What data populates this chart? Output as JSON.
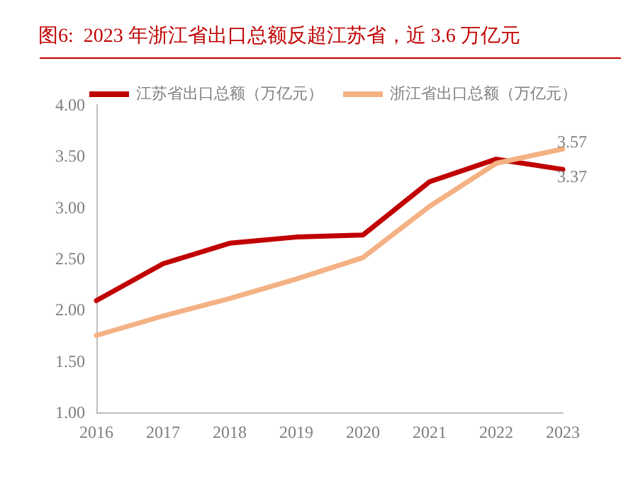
{
  "chart_data": {
    "type": "line",
    "title": "图6:  2023 年浙江省出口总额反超江苏省，近 3.6 万亿元",
    "categories": [
      "2016",
      "2017",
      "2018",
      "2019",
      "2020",
      "2021",
      "2022",
      "2023"
    ],
    "series": [
      {
        "name": "江苏省出口总额（万亿元）",
        "color": "#c00000",
        "values": [
          2.09,
          2.45,
          2.65,
          2.71,
          2.73,
          3.25,
          3.47,
          3.37
        ],
        "value_labels": [
          null,
          null,
          null,
          null,
          null,
          null,
          null,
          "3.37"
        ]
      },
      {
        "name": "浙江省出口总额（万亿元）",
        "color": "#f4b183",
        "values": [
          1.75,
          1.94,
          2.11,
          2.3,
          2.51,
          3.01,
          3.43,
          3.57
        ],
        "value_labels": [
          null,
          null,
          null,
          null,
          null,
          null,
          null,
          "3.57"
        ]
      }
    ],
    "ylim": [
      1.0,
      4.0
    ],
    "yticks": [
      {
        "value": 1,
        "label": "1.00"
      },
      {
        "value": 1.5,
        "label": "1.50"
      },
      {
        "value": 2,
        "label": "2.00"
      },
      {
        "value": 2.5,
        "label": "2.50"
      },
      {
        "value": 3,
        "label": "3.00"
      },
      {
        "value": 3.5,
        "label": "3.50"
      },
      {
        "value": 4,
        "label": "4.00"
      }
    ],
    "grid": false,
    "legend": "top",
    "marker": "none",
    "line_style": "solid"
  }
}
